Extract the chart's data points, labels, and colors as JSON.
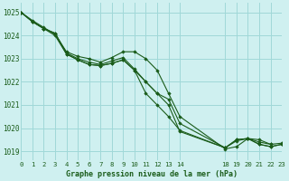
{
  "title": "Graphe pression niveau de la mer (hPa)",
  "bg_color": "#cff0f0",
  "grid_color": "#a0d8d8",
  "line_color": "#1a5c1a",
  "xlim": [
    0,
    23
  ],
  "ylim": [
    1018.6,
    1025.4
  ],
  "yticks": [
    1019,
    1020,
    1021,
    1022,
    1023,
    1024,
    1025
  ],
  "xticks": [
    0,
    1,
    2,
    3,
    4,
    5,
    6,
    7,
    8,
    9,
    10,
    11,
    12,
    13,
    14,
    18,
    19,
    20,
    21,
    22,
    23
  ],
  "series": [
    {
      "x": [
        0,
        1,
        2,
        3,
        4,
        5,
        6,
        7,
        8,
        9,
        10,
        11,
        12,
        13,
        14,
        18,
        19,
        20,
        21,
        22
      ],
      "y": [
        1025.0,
        1024.65,
        1024.35,
        1024.05,
        1023.3,
        1023.1,
        1023.0,
        1022.85,
        1023.05,
        1023.3,
        1023.3,
        1023.0,
        1022.5,
        1021.5,
        1020.5,
        1019.1,
        1019.2,
        1019.55,
        1019.5,
        1019.3
      ]
    },
    {
      "x": [
        0,
        1,
        2,
        3,
        4,
        5,
        6,
        7,
        8,
        9,
        10,
        11,
        12,
        13,
        14,
        18,
        19,
        20,
        21,
        22,
        23
      ],
      "y": [
        1025.0,
        1024.6,
        1024.3,
        1024.1,
        1023.25,
        1023.0,
        1022.85,
        1022.75,
        1022.9,
        1023.05,
        1022.55,
        1022.0,
        1021.5,
        1021.25,
        1020.2,
        1019.15,
        1019.5,
        1019.55,
        1019.4,
        1019.3,
        1019.35
      ]
    },
    {
      "x": [
        0,
        1,
        2,
        3,
        4,
        5,
        6,
        7,
        8,
        9,
        10,
        11,
        12,
        13,
        14,
        18,
        19,
        20,
        21,
        22,
        23
      ],
      "y": [
        1025.0,
        1024.6,
        1024.3,
        1024.1,
        1023.2,
        1022.95,
        1022.75,
        1022.7,
        1022.8,
        1022.95,
        1022.5,
        1021.5,
        1021.0,
        1020.5,
        1019.9,
        1019.15,
        1019.5,
        1019.55,
        1019.3,
        1019.2,
        1019.3
      ]
    },
    {
      "x": [
        0,
        1,
        2,
        3,
        4,
        5,
        6,
        7,
        8,
        9,
        10,
        11,
        12,
        13,
        14,
        18,
        19,
        20,
        21,
        22,
        23
      ],
      "y": [
        1025.0,
        1024.6,
        1024.3,
        1024.0,
        1023.2,
        1022.95,
        1022.75,
        1022.7,
        1022.8,
        1022.95,
        1022.5,
        1022.0,
        1021.5,
        1021.0,
        1019.85,
        1019.15,
        1019.45,
        1019.55,
        1019.3,
        1019.2,
        1019.3
      ]
    }
  ]
}
